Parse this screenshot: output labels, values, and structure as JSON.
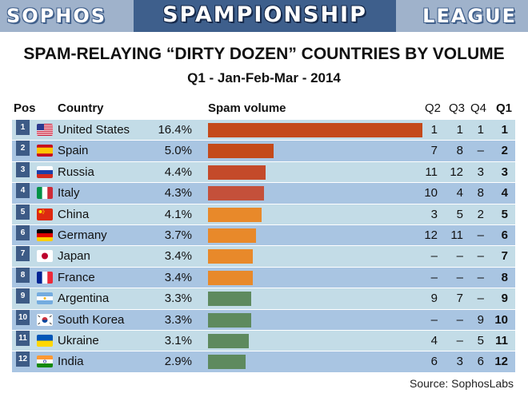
{
  "banner": {
    "left": "SOPHOS",
    "middle": "SPAMPIONSHIP",
    "right": "LEAGUE"
  },
  "chart_data": {
    "type": "table",
    "title": "SPAM-RELAYING “DIRTY DOZEN” COUNTRIES BY VOLUME",
    "subtitle": "Q1 - Jan-Feb-Mar - 2014",
    "columns": {
      "pos": "Pos",
      "country": "Country",
      "volume": "Spam volume",
      "q2": "Q2",
      "q3": "Q3",
      "q4": "Q4",
      "q1": "Q1"
    },
    "max_volume": 16.4,
    "rows": [
      {
        "pos": "1",
        "country": "United States",
        "flag": "us-flag-icon",
        "value": 16.4,
        "pct": "16.4%",
        "q2": "1",
        "q3": "1",
        "q4": "1",
        "q1": "1",
        "color": "#c44a1a"
      },
      {
        "pos": "2",
        "country": "Spain",
        "flag": "spain-flag-icon",
        "value": 5.0,
        "pct": "5.0%",
        "q2": "7",
        "q3": "8",
        "q4": "–",
        "q1": "2",
        "color": "#c44a1a"
      },
      {
        "pos": "3",
        "country": "Russia",
        "flag": "russia-flag-icon",
        "value": 4.4,
        "pct": "4.4%",
        "q2": "11",
        "q3": "12",
        "q4": "3",
        "q1": "3",
        "color": "#c44a2a"
      },
      {
        "pos": "4",
        "country": "Italy",
        "flag": "italy-flag-icon",
        "value": 4.3,
        "pct": "4.3%",
        "q2": "10",
        "q3": "4",
        "q4": "8",
        "q1": "4",
        "color": "#c4503a"
      },
      {
        "pos": "5",
        "country": "China",
        "flag": "china-flag-icon",
        "value": 4.1,
        "pct": "4.1%",
        "q2": "3",
        "q3": "5",
        "q4": "2",
        "q1": "5",
        "color": "#e8892a"
      },
      {
        "pos": "6",
        "country": "Germany",
        "flag": "germany-flag-icon",
        "value": 3.7,
        "pct": "3.7%",
        "q2": "12",
        "q3": "11",
        "q4": "–",
        "q1": "6",
        "color": "#e8892a"
      },
      {
        "pos": "7",
        "country": "Japan",
        "flag": "japan-flag-icon",
        "value": 3.4,
        "pct": "3.4%",
        "q2": "–",
        "q3": "–",
        "q4": "–",
        "q1": "7",
        "color": "#e8892a"
      },
      {
        "pos": "8",
        "country": "France",
        "flag": "france-flag-icon",
        "value": 3.4,
        "pct": "3.4%",
        "q2": "–",
        "q3": "–",
        "q4": "–",
        "q1": "8",
        "color": "#e8892a"
      },
      {
        "pos": "9",
        "country": "Argentina",
        "flag": "argentina-flag-icon",
        "value": 3.3,
        "pct": "3.3%",
        "q2": "9",
        "q3": "7",
        "q4": "–",
        "q1": "9",
        "color": "#5e8a5e"
      },
      {
        "pos": "10",
        "country": "South Korea",
        "flag": "south-korea-flag-icon",
        "value": 3.3,
        "pct": "3.3%",
        "q2": "–",
        "q3": "–",
        "q4": "9",
        "q1": "10",
        "color": "#5e8a5e"
      },
      {
        "pos": "11",
        "country": "Ukraine",
        "flag": "ukraine-flag-icon",
        "value": 3.1,
        "pct": "3.1%",
        "q2": "4",
        "q3": "–",
        "q4": "5",
        "q1": "11",
        "color": "#5e8a5e"
      },
      {
        "pos": "12",
        "country": "India",
        "flag": "india-flag-icon",
        "value": 2.9,
        "pct": "2.9%",
        "q2": "6",
        "q3": "3",
        "q4": "6",
        "q1": "12",
        "color": "#5e8a5e"
      }
    ]
  },
  "source": "Source: SophosLabs"
}
